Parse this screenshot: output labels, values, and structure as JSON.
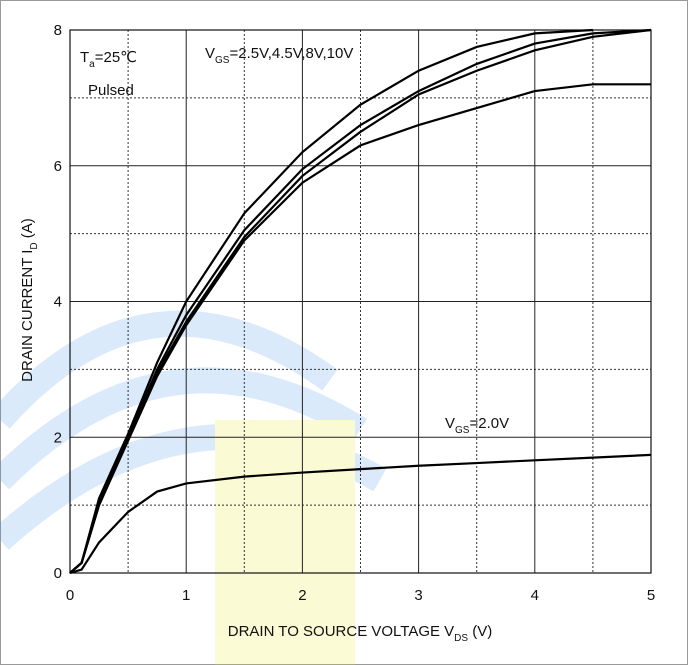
{
  "chart_data": {
    "type": "line",
    "x": [
      0,
      0.1,
      0.25,
      0.5,
      0.75,
      1,
      1.5,
      2,
      2.5,
      3,
      3.5,
      4,
      4.5,
      5
    ],
    "series": [
      {
        "color": "#000000",
        "values": [
          0,
          0.15,
          1.1,
          2.05,
          3.1,
          4.0,
          5.3,
          6.2,
          6.9,
          7.4,
          7.75,
          7.95,
          8.0,
          null
        ]
      },
      {
        "color": "#000000",
        "values": [
          0,
          0.15,
          1.05,
          2.0,
          3.0,
          3.8,
          5.05,
          5.95,
          6.6,
          7.1,
          7.5,
          7.8,
          7.95,
          8.0
        ]
      },
      {
        "color": "#000000",
        "values": [
          0,
          0.15,
          1.0,
          1.98,
          2.95,
          3.7,
          4.95,
          5.85,
          6.5,
          7.05,
          7.4,
          7.7,
          7.9,
          8.0
        ]
      },
      {
        "color": "#000000",
        "values": [
          0,
          0.15,
          1.0,
          1.95,
          2.9,
          3.65,
          4.9,
          5.75,
          6.3,
          6.6,
          6.85,
          7.1,
          7.2,
          7.2
        ]
      },
      {
        "color": "#000000",
        "values": [
          0,
          0.05,
          0.45,
          0.9,
          1.2,
          1.32,
          1.42,
          1.48,
          1.53,
          1.58,
          1.62,
          1.66,
          1.7,
          1.74
        ]
      }
    ],
    "xlim": [
      0,
      5
    ],
    "ylim": [
      0,
      8
    ],
    "xticks": [
      0,
      1,
      2,
      3,
      4,
      5
    ],
    "yticks": [
      0,
      2,
      4,
      6,
      8
    ],
    "xminor": [
      0.5,
      1.5,
      2.5,
      3.5,
      4.5
    ],
    "yminor": [
      1,
      3,
      5,
      7
    ],
    "grid": true,
    "xlabel": [
      {
        "t": "DRAIN TO SOURCE VOLTAGE V"
      },
      {
        "sub": "DS"
      },
      {
        "t": " (V)"
      }
    ],
    "ylabel": [
      {
        "t": "DRAIN CURRENT I"
      },
      {
        "sub": "D"
      },
      {
        "t": " (A)"
      }
    ],
    "annotations": [
      [
        {
          "t": "T"
        },
        {
          "sub": "a"
        },
        {
          "t": "=25℃"
        }
      ],
      [
        {
          "t": "Pulsed"
        }
      ],
      [
        {
          "t": "V"
        },
        {
          "sub": "GS"
        },
        {
          "t": "=2.5V,4.5V,8V,10V"
        }
      ],
      [
        {
          "t": "V"
        },
        {
          "sub": "GS"
        },
        {
          "t": "=2.0V"
        }
      ]
    ]
  }
}
